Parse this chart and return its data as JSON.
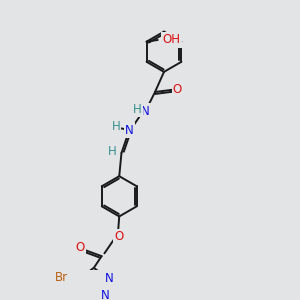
{
  "bg_color": "#e2e4e6",
  "bond_color": "#1a1a1a",
  "bond_width": 1.4,
  "atom_colors": {
    "C": "#1a1a1a",
    "H": "#3a9090",
    "N": "#1010dd",
    "O": "#dd1010",
    "Br": "#bb6010"
  },
  "font_size": 8.5,
  "figsize": [
    3.0,
    3.0
  ],
  "dpi": 100,
  "xlim": [
    0.5,
    6.5
  ],
  "ylim": [
    0.2,
    9.8
  ]
}
